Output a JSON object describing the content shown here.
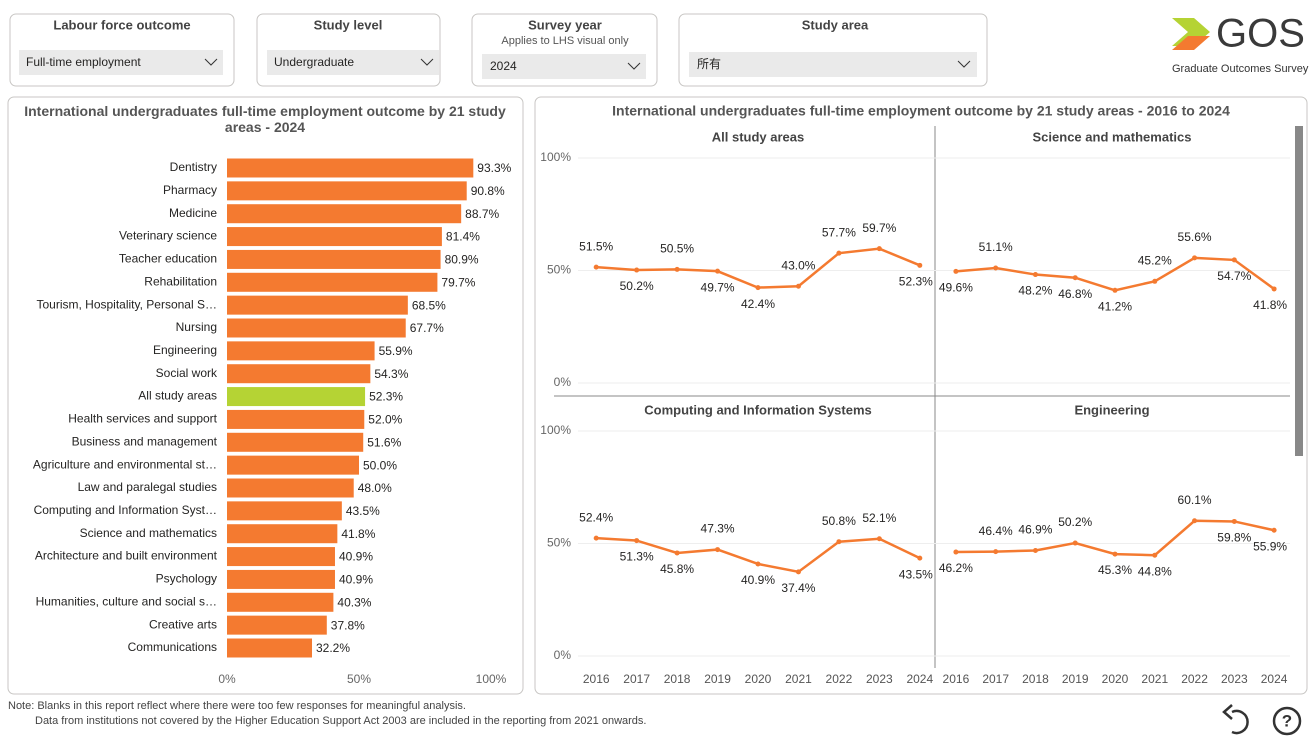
{
  "filters": [
    {
      "label": "Labour force outcome",
      "value": "Full-time employment"
    },
    {
      "label": "Study level",
      "value": "Undergraduate"
    },
    {
      "label": "Survey year",
      "sublabel": "Applies to LHS visual only",
      "value": "2024"
    },
    {
      "label": "Study area",
      "value": "所有"
    }
  ],
  "logo": {
    "text": "GOS",
    "tagline": "Graduate Outcomes Survey"
  },
  "chart_data": [
    {
      "type": "bar",
      "orientation": "horizontal",
      "title": "International undergraduates full-time employment outcome by 21 study areas - 2024",
      "categories": [
        "Dentistry",
        "Pharmacy",
        "Medicine",
        "Veterinary science",
        "Teacher education",
        "Rehabilitation",
        "Tourism, Hospitality, Personal S…",
        "Nursing",
        "Engineering",
        "Social work",
        "All study areas",
        "Health services and support",
        "Business and management",
        "Agriculture and environmental st…",
        "Law and paralegal studies",
        "Computing and Information Syst…",
        "Science and mathematics",
        "Architecture and built environment",
        "Psychology",
        "Humanities, culture and social s…",
        "Creative arts",
        "Communications"
      ],
      "values": [
        93.3,
        90.8,
        88.7,
        81.4,
        80.9,
        79.7,
        68.5,
        67.7,
        55.9,
        54.3,
        52.3,
        52.0,
        51.6,
        50.0,
        48.0,
        43.5,
        41.8,
        40.9,
        40.9,
        40.3,
        37.8,
        32.2
      ],
      "value_labels": [
        "93.3%",
        "90.8%",
        "88.7%",
        "81.4%",
        "80.9%",
        "79.7%",
        "68.5%",
        "67.7%",
        "55.9%",
        "54.3%",
        "52.3%",
        "52.0%",
        "51.6%",
        "50.0%",
        "48.0%",
        "43.5%",
        "41.8%",
        "40.9%",
        "40.9%",
        "40.3%",
        "37.8%",
        "32.2%"
      ],
      "colors": [
        "#f47a30",
        "#f47a30",
        "#f47a30",
        "#f47a30",
        "#f47a30",
        "#f47a30",
        "#f47a30",
        "#f47a30",
        "#f47a30",
        "#f47a30",
        "#b5d334",
        "#f47a30",
        "#f47a30",
        "#f47a30",
        "#f47a30",
        "#f47a30",
        "#f47a30",
        "#f47a30",
        "#f47a30",
        "#f47a30",
        "#f47a30",
        "#f47a30"
      ],
      "xlim": [
        0,
        100
      ],
      "xticks": [
        {
          "value": 0,
          "label": "0%"
        },
        {
          "value": 50,
          "label": "50%"
        },
        {
          "value": 100,
          "label": "100%"
        }
      ]
    },
    {
      "type": "line",
      "title": "International undergraduates full-time employment outcome by 21 study areas - 2016 to 2024",
      "color": "#f47a30",
      "x": [
        2016,
        2017,
        2018,
        2019,
        2020,
        2021,
        2022,
        2023,
        2024
      ],
      "xlim": [
        2015.55,
        2024.45
      ],
      "ylim": [
        0,
        100
      ],
      "yticks": [
        {
          "value": 0,
          "label": "0%"
        },
        {
          "value": 50,
          "label": "50%"
        },
        {
          "value": 100,
          "label": "100%"
        }
      ],
      "grid": true,
      "panels": [
        {
          "title": "All study areas",
          "values": [
            51.5,
            50.2,
            50.5,
            49.7,
            42.4,
            43.0,
            57.7,
            59.7,
            52.3
          ],
          "value_labels": [
            "51.5%",
            "50.2%",
            "50.5%",
            "49.7%",
            "42.4%",
            "43.0%",
            "57.7%",
            "59.7%",
            "52.3%"
          ]
        },
        {
          "title": "Science and mathematics",
          "values": [
            49.6,
            51.1,
            48.2,
            46.8,
            41.2,
            45.2,
            55.6,
            54.7,
            41.8
          ],
          "value_labels": [
            "49.6%",
            "51.1%",
            "48.2%",
            "46.8%",
            "41.2%",
            "45.2%",
            "55.6%",
            "54.7%",
            "41.8%"
          ]
        },
        {
          "title": "Computing and Information Systems",
          "values": [
            52.4,
            51.3,
            45.8,
            47.3,
            40.9,
            37.4,
            50.8,
            52.1,
            43.5
          ],
          "value_labels": [
            "52.4%",
            "51.3%",
            "45.8%",
            "47.3%",
            "40.9%",
            "37.4%",
            "50.8%",
            "52.1%",
            "43.5%"
          ]
        },
        {
          "title": "Engineering",
          "values": [
            46.2,
            46.4,
            46.9,
            50.2,
            45.3,
            44.8,
            60.1,
            59.8,
            55.9
          ],
          "value_labels": [
            "46.2%",
            "46.4%",
            "46.9%",
            "50.2%",
            "45.3%",
            "44.8%",
            "60.1%",
            "59.8%",
            "55.9%"
          ]
        }
      ]
    }
  ],
  "notes": [
    "Note: Blanks in this report reflect where there were too few responses for meaningful analysis.",
    "Data from institutions not covered by the Higher Education Support Act 2003 are included in the reporting from 2021 onwards."
  ]
}
